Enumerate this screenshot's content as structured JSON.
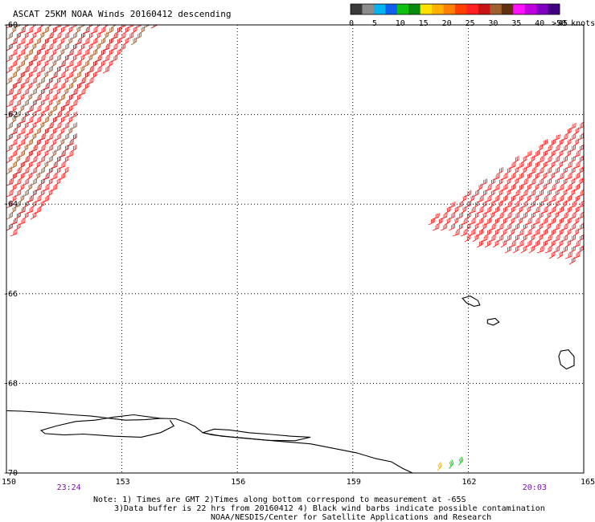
{
  "title": "ASCAT 25KM NOAA Winds 20160412 descending",
  "legend": {
    "bins": [
      {
        "color": "#3a3a3a"
      },
      {
        "color": "#8c8c8c"
      },
      {
        "color": "#00b4f0"
      },
      {
        "color": "#1060f0"
      },
      {
        "color": "#10c010"
      },
      {
        "color": "#0a8a0a"
      },
      {
        "color": "#ffe000"
      },
      {
        "color": "#ffb000"
      },
      {
        "color": "#ff8000"
      },
      {
        "color": "#ff4000"
      },
      {
        "color": "#ff2020"
      },
      {
        "color": "#c81414"
      },
      {
        "color": "#a06030"
      },
      {
        "color": "#603010"
      },
      {
        "color": "#ff10ff"
      },
      {
        "color": "#c000e0"
      },
      {
        "color": "#8000c0"
      },
      {
        "color": "#400080"
      }
    ],
    "labels": [
      "0",
      "5",
      "10",
      "15",
      "20",
      "25",
      "30",
      "35",
      "40",
      "45",
      ">50 knots"
    ]
  },
  "map_data": {
    "lon_range": [
      150,
      165
    ],
    "lat_range": [
      -70,
      -60
    ],
    "x_ticks": [
      {
        "lon": 150,
        "label": "150"
      },
      {
        "lon": 153,
        "label": "153"
      },
      {
        "lon": 156,
        "label": "156"
      },
      {
        "lon": 159,
        "label": "159"
      },
      {
        "lon": 162,
        "label": "162"
      },
      {
        "lon": 165,
        "label": "165"
      }
    ],
    "y_ticks": [
      {
        "lat": -60,
        "label": "-60"
      },
      {
        "lat": -62,
        "label": "-62"
      },
      {
        "lat": -64,
        "label": "-64"
      },
      {
        "lat": -66,
        "label": "-66"
      },
      {
        "lat": -68,
        "label": "-68"
      },
      {
        "lat": -70,
        "label": "-70"
      }
    ],
    "pass_times": [
      {
        "lon": 151.6,
        "label": "23:24"
      },
      {
        "lon": 163.7,
        "label": "20:03"
      }
    ],
    "swaths": [
      {
        "name": "west-swath",
        "polygon": [
          [
            150,
            -59.97
          ],
          [
            153.0,
            -59.97
          ],
          [
            154.1,
            -60.0
          ],
          [
            153.6,
            -60.2
          ],
          [
            152.8,
            -60.8
          ],
          [
            152.1,
            -61.5
          ],
          [
            151.7,
            -62.0
          ],
          [
            151.75,
            -62.8
          ],
          [
            151.3,
            -63.7
          ],
          [
            150.7,
            -64.3
          ],
          [
            150,
            -64.8
          ]
        ]
      },
      {
        "name": "east-swath",
        "polygon": [
          [
            160.65,
            -64.55
          ],
          [
            161.6,
            -64.0
          ],
          [
            162.7,
            -63.3
          ],
          [
            163.9,
            -62.7
          ],
          [
            165,
            -62.1
          ],
          [
            165,
            -65.0
          ],
          [
            164.7,
            -65.4
          ],
          [
            163.9,
            -65.2
          ],
          [
            162.9,
            -65.1
          ],
          [
            162.2,
            -65.0
          ],
          [
            161.5,
            -64.7
          ]
        ]
      }
    ],
    "barb_colors": {
      "west-swath": [
        "#c81414",
        "#ff2020",
        "#a06030",
        "#c81414",
        "#ff4000",
        "#a06030",
        "#603010",
        "#ff2020"
      ],
      "east-swath": [
        "#ff2020",
        "#c81414",
        "#ff4000",
        "#ff8000",
        "#a06030",
        "#ff2020",
        "#ff10ff"
      ]
    },
    "contamination_barbs": [
      {
        "lon": 161.2,
        "lat": -69.95,
        "color": "#ffb000"
      },
      {
        "lon": 161.5,
        "lat": -69.9,
        "color": "#10c010"
      },
      {
        "lon": 161.75,
        "lat": -69.83,
        "color": "#10c010"
      }
    ],
    "coastline": [
      [
        150,
        -68.61
      ],
      [
        150.4,
        -68.62
      ],
      [
        151.0,
        -68.65
      ],
      [
        151.7,
        -68.7
      ],
      [
        152.2,
        -68.73
      ],
      [
        152.6,
        -68.77
      ],
      [
        153.1,
        -68.82
      ],
      [
        153.6,
        -68.81
      ],
      [
        154.0,
        -68.78
      ],
      [
        154.4,
        -68.79
      ],
      [
        154.7,
        -68.88
      ],
      [
        154.9,
        -68.96
      ],
      [
        155.1,
        -69.1
      ],
      [
        155.35,
        -69.15
      ],
      [
        155.9,
        -69.2
      ],
      [
        156.5,
        -69.25
      ],
      [
        157.2,
        -69.3
      ],
      [
        157.9,
        -69.35
      ],
      [
        158.5,
        -69.45
      ],
      [
        159.1,
        -69.55
      ],
      [
        159.6,
        -69.68
      ],
      [
        160.0,
        -69.75
      ],
      [
        160.3,
        -69.9
      ],
      [
        160.55,
        -70.0
      ]
    ],
    "coastline_inlet": [
      [
        154.0,
        -68.78
      ],
      [
        153.3,
        -68.7
      ],
      [
        152.8,
        -68.75
      ],
      [
        152.3,
        -68.82
      ],
      [
        151.8,
        -68.85
      ],
      [
        151.3,
        -68.95
      ],
      [
        150.9,
        -69.05
      ],
      [
        151.0,
        -69.12
      ],
      [
        151.5,
        -69.15
      ],
      [
        152.0,
        -69.13
      ],
      [
        152.8,
        -69.18
      ],
      [
        153.5,
        -69.2
      ],
      [
        154.0,
        -69.1
      ],
      [
        154.35,
        -68.95
      ],
      [
        154.25,
        -68.82
      ]
    ],
    "ice_tongue": [
      [
        155.1,
        -69.1
      ],
      [
        155.4,
        -69.02
      ],
      [
        155.8,
        -69.04
      ],
      [
        156.3,
        -69.1
      ],
      [
        156.9,
        -69.14
      ],
      [
        157.4,
        -69.18
      ],
      [
        157.9,
        -69.2
      ],
      [
        157.5,
        -69.28
      ],
      [
        156.8,
        -69.27
      ],
      [
        156.2,
        -69.22
      ],
      [
        155.6,
        -69.18
      ]
    ],
    "islands": [
      {
        "name": "island-1",
        "points": [
          [
            161.85,
            -66.1
          ],
          [
            162.05,
            -66.05
          ],
          [
            162.25,
            -66.15
          ],
          [
            162.3,
            -66.25
          ],
          [
            162.15,
            -66.28
          ],
          [
            161.95,
            -66.2
          ]
        ]
      },
      {
        "name": "island-2",
        "points": [
          [
            162.5,
            -66.58
          ],
          [
            162.7,
            -66.55
          ],
          [
            162.8,
            -66.63
          ],
          [
            162.65,
            -66.7
          ],
          [
            162.5,
            -66.66
          ]
        ]
      },
      {
        "name": "island-3",
        "points": [
          [
            164.4,
            -67.28
          ],
          [
            164.6,
            -67.25
          ],
          [
            164.75,
            -67.4
          ],
          [
            164.75,
            -67.6
          ],
          [
            164.55,
            -67.68
          ],
          [
            164.4,
            -67.58
          ],
          [
            164.35,
            -67.4
          ]
        ]
      }
    ]
  },
  "notes": {
    "line1": "Note: 1) Times are GMT 2)Times along bottom correspond to measurement at -65S",
    "line2": "3)Data buffer is 22 hrs from 20160412 4) Black wind barbs indicate possible contamination",
    "line3": "NOAA/NESDIS/Center for Satellite Applications and Research"
  }
}
